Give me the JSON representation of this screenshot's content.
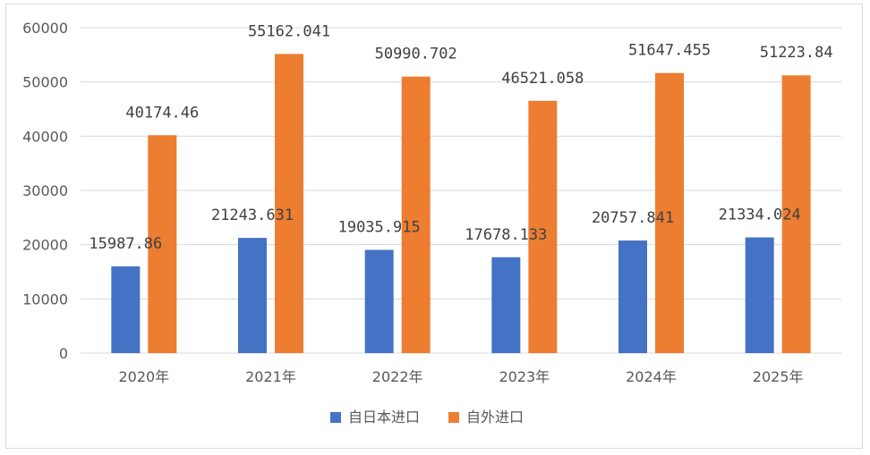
{
  "chart_data": {
    "type": "bar",
    "categories": [
      "2020年",
      "2021年",
      "2022年",
      "2023年",
      "2024年",
      "2025年"
    ],
    "series": [
      {
        "name": "自日本进口",
        "color": "#4472c4",
        "values": [
          15987.86,
          21243.631,
          19035.915,
          17678.133,
          20757.841,
          21334.024
        ],
        "labels": [
          "15987.86",
          "21243.631",
          "19035.915",
          "17678.133",
          "20757.841",
          "21334.024"
        ]
      },
      {
        "name": "自外进口",
        "color": "#ed7d31",
        "values": [
          40174.46,
          55162.041,
          50990.702,
          46521.058,
          51647.455,
          51223.84
        ],
        "labels": [
          "40174.46",
          "55162.041",
          "50990.702",
          "46521.058",
          "51647.455",
          "51223.84"
        ]
      }
    ],
    "ylim": [
      0,
      60000
    ],
    "yticks": [
      "0",
      "10000",
      "20000",
      "30000",
      "40000",
      "50000",
      "60000"
    ],
    "grid": true,
    "legend_position": "bottom",
    "title": "",
    "xlabel": "",
    "ylabel": ""
  }
}
